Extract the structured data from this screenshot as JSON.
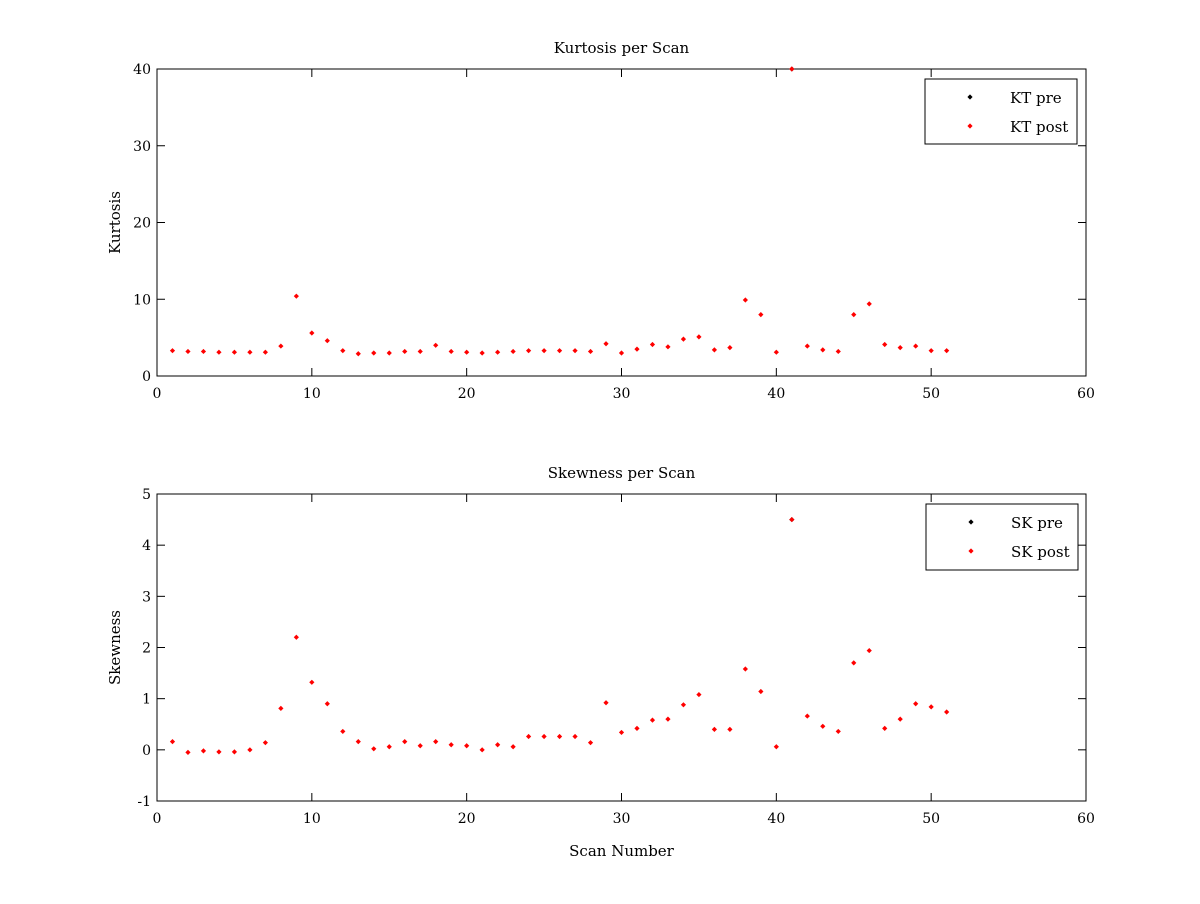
{
  "chart_data": [
    {
      "type": "scatter",
      "title": "Kurtosis per Scan",
      "xlabel": "",
      "ylabel": "Kurtosis",
      "xlim": [
        0,
        60
      ],
      "ylim": [
        0,
        40
      ],
      "xticks": [
        0,
        10,
        20,
        30,
        40,
        50,
        60
      ],
      "yticks": [
        0,
        10,
        20,
        30,
        40
      ],
      "grid": false,
      "legend_position": "top-right",
      "series": [
        {
          "name": "KT pre",
          "color": "#000000",
          "x": [
            41
          ],
          "y": [
            40
          ]
        },
        {
          "name": "KT post",
          "color": "#ff0000",
          "x": [
            1,
            2,
            3,
            4,
            5,
            6,
            7,
            8,
            9,
            10,
            11,
            12,
            13,
            14,
            15,
            16,
            17,
            18,
            19,
            20,
            21,
            22,
            23,
            24,
            25,
            26,
            27,
            28,
            29,
            30,
            31,
            32,
            33,
            34,
            35,
            36,
            37,
            38,
            39,
            40,
            41,
            42,
            43,
            44,
            45,
            46,
            47,
            48,
            49,
            50,
            51
          ],
          "y": [
            3.3,
            3.2,
            3.2,
            3.1,
            3.1,
            3.1,
            3.1,
            3.9,
            10.4,
            5.6,
            4.6,
            3.3,
            2.9,
            3.0,
            3.0,
            3.2,
            3.2,
            4.0,
            3.2,
            3.1,
            3.0,
            3.1,
            3.2,
            3.3,
            3.3,
            3.3,
            3.3,
            3.2,
            4.2,
            3.0,
            3.5,
            4.1,
            3.8,
            4.8,
            5.1,
            3.4,
            3.7,
            9.9,
            8.0,
            3.1,
            40.0,
            3.9,
            3.4,
            3.2,
            8.0,
            9.4,
            4.1,
            3.7,
            3.9,
            3.3,
            3.3
          ]
        }
      ]
    },
    {
      "type": "scatter",
      "title": "Skewness per Scan",
      "xlabel": "Scan Number",
      "ylabel": "Skewness",
      "xlim": [
        0,
        60
      ],
      "ylim": [
        -1,
        5
      ],
      "xticks": [
        0,
        10,
        20,
        30,
        40,
        50,
        60
      ],
      "yticks": [
        -1,
        0,
        1,
        2,
        3,
        4,
        5
      ],
      "grid": false,
      "legend_position": "top-right",
      "series": [
        {
          "name": "SK pre",
          "color": "#000000",
          "x": [
            41
          ],
          "y": [
            4.5
          ]
        },
        {
          "name": "SK post",
          "color": "#ff0000",
          "x": [
            1,
            2,
            3,
            4,
            5,
            6,
            7,
            8,
            9,
            10,
            11,
            12,
            13,
            14,
            15,
            16,
            17,
            18,
            19,
            20,
            21,
            22,
            23,
            24,
            25,
            26,
            27,
            28,
            29,
            30,
            31,
            32,
            33,
            34,
            35,
            36,
            37,
            38,
            39,
            40,
            41,
            42,
            43,
            44,
            45,
            46,
            47,
            48,
            49,
            50,
            51
          ],
          "y": [
            0.16,
            -0.05,
            -0.02,
            -0.04,
            -0.04,
            0.0,
            0.14,
            0.81,
            2.2,
            1.32,
            0.9,
            0.36,
            0.16,
            0.02,
            0.06,
            0.16,
            0.08,
            0.16,
            0.1,
            0.08,
            0.0,
            0.1,
            0.06,
            0.26,
            0.26,
            0.26,
            0.26,
            0.14,
            0.92,
            0.34,
            0.42,
            0.58,
            0.6,
            0.88,
            1.08,
            0.4,
            0.4,
            1.58,
            1.14,
            0.06,
            4.5,
            0.66,
            0.46,
            0.36,
            1.7,
            1.94,
            0.42,
            0.6,
            0.9,
            0.84,
            0.74
          ]
        }
      ]
    }
  ]
}
